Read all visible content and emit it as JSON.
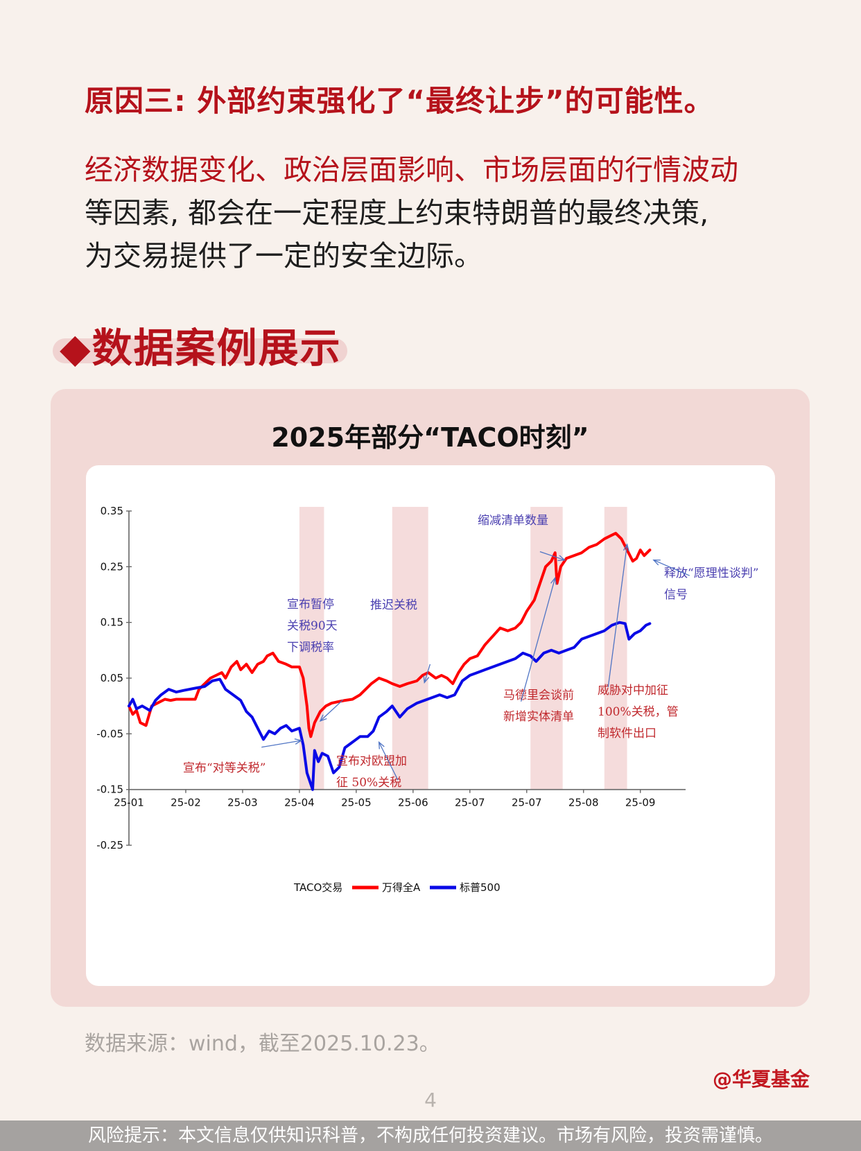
{
  "header": {
    "heading": "原因三: 外部约束强化了“最终让步”的可能性。",
    "para_red": "经济数据变化、政治层面影响、市场层面的行情波动",
    "para_line2": "等因素, 都会在一定程度上约束特朗普的最终决策,",
    "para_line3": "为交易提供了一定的安全边际。"
  },
  "section": {
    "title": "◆数据案例展示"
  },
  "colors": {
    "accent": "#b5121b",
    "wind": "#ff0000",
    "sp500": "#0a0ae6",
    "band": "#f5dcdc"
  },
  "chart_data": {
    "type": "line",
    "title": "2025年部分“TACO时刻”",
    "ylim": [
      -0.25,
      0.35
    ],
    "y_ticks": [
      "0.35",
      "0.25",
      "0.15",
      "0.05",
      "-0.05",
      "-0.15",
      "-0.25"
    ],
    "y_tick_values": [
      0.35,
      0.25,
      0.15,
      0.05,
      -0.05,
      -0.15,
      -0.25
    ],
    "x_range": [
      "2025-01-01",
      "2025-10-23"
    ],
    "x_ticks": [
      "25-01",
      "25-02",
      "25-03",
      "25-04",
      "25-05",
      "25-06",
      "25-07",
      "25-07",
      "25-08",
      "25-09"
    ],
    "x_tick_dates": [
      "2025-01-01",
      "2025-01-31",
      "2025-03-02",
      "2025-04-01",
      "2025-05-01",
      "2025-05-31",
      "2025-06-30",
      "2025-07-30",
      "2025-08-29",
      "2025-09-28"
    ],
    "legend": {
      "title": "TACO交易",
      "placement": "bottom-center"
    },
    "bands": [
      [
        "2025-04-01",
        "2025-04-14"
      ],
      [
        "2025-05-20",
        "2025-06-08"
      ],
      [
        "2025-08-01",
        "2025-08-18"
      ],
      [
        "2025-09-09",
        "2025-09-21"
      ]
    ],
    "series": [
      {
        "name": "万得全A",
        "color": "#ff0000",
        "points": [
          [
            "2025-01-01",
            0.0
          ],
          [
            "2025-01-03",
            -0.015
          ],
          [
            "2025-01-05",
            -0.008
          ],
          [
            "2025-01-07",
            -0.03
          ],
          [
            "2025-01-10",
            -0.035
          ],
          [
            "2025-01-13",
            0.0
          ],
          [
            "2025-01-16",
            0.005
          ],
          [
            "2025-01-20",
            0.012
          ],
          [
            "2025-01-23",
            0.01
          ],
          [
            "2025-01-26",
            0.012
          ],
          [
            "2025-02-05",
            0.012
          ],
          [
            "2025-02-07",
            0.03
          ],
          [
            "2025-02-10",
            0.04
          ],
          [
            "2025-02-13",
            0.05
          ],
          [
            "2025-02-16",
            0.055
          ],
          [
            "2025-02-19",
            0.06
          ],
          [
            "2025-02-21",
            0.05
          ],
          [
            "2025-02-24",
            0.07
          ],
          [
            "2025-02-27",
            0.08
          ],
          [
            "2025-03-01",
            0.065
          ],
          [
            "2025-03-04",
            0.075
          ],
          [
            "2025-03-07",
            0.06
          ],
          [
            "2025-03-10",
            0.075
          ],
          [
            "2025-03-13",
            0.08
          ],
          [
            "2025-03-15",
            0.09
          ],
          [
            "2025-03-18",
            0.095
          ],
          [
            "2025-03-21",
            0.08
          ],
          [
            "2025-03-25",
            0.075
          ],
          [
            "2025-03-28",
            0.07
          ],
          [
            "2025-04-01",
            0.07
          ],
          [
            "2025-04-03",
            0.05
          ],
          [
            "2025-04-05",
            0.0
          ],
          [
            "2025-04-06",
            -0.04
          ],
          [
            "2025-04-07",
            -0.055
          ],
          [
            "2025-04-09",
            -0.03
          ],
          [
            "2025-04-12",
            -0.01
          ],
          [
            "2025-04-15",
            0.0
          ],
          [
            "2025-04-18",
            0.005
          ],
          [
            "2025-04-22",
            0.008
          ],
          [
            "2025-04-25",
            0.01
          ],
          [
            "2025-04-29",
            0.012
          ],
          [
            "2025-05-03",
            0.02
          ],
          [
            "2025-05-06",
            0.03
          ],
          [
            "2025-05-09",
            0.04
          ],
          [
            "2025-05-13",
            0.05
          ],
          [
            "2025-05-17",
            0.045
          ],
          [
            "2025-05-20",
            0.04
          ],
          [
            "2025-05-24",
            0.035
          ],
          [
            "2025-05-28",
            0.04
          ],
          [
            "2025-06-02",
            0.045
          ],
          [
            "2025-06-05",
            0.055
          ],
          [
            "2025-06-08",
            0.06
          ],
          [
            "2025-06-12",
            0.05
          ],
          [
            "2025-06-15",
            0.055
          ],
          [
            "2025-06-18",
            0.05
          ],
          [
            "2025-06-21",
            0.04
          ],
          [
            "2025-06-24",
            0.06
          ],
          [
            "2025-06-27",
            0.075
          ],
          [
            "2025-06-30",
            0.085
          ],
          [
            "2025-07-04",
            0.09
          ],
          [
            "2025-07-08",
            0.11
          ],
          [
            "2025-07-12",
            0.125
          ],
          [
            "2025-07-16",
            0.14
          ],
          [
            "2025-07-20",
            0.135
          ],
          [
            "2025-07-24",
            0.14
          ],
          [
            "2025-07-27",
            0.15
          ],
          [
            "2025-07-30",
            0.17
          ],
          [
            "2025-08-03",
            0.19
          ],
          [
            "2025-08-06",
            0.22
          ],
          [
            "2025-08-09",
            0.25
          ],
          [
            "2025-08-12",
            0.26
          ],
          [
            "2025-08-14",
            0.275
          ],
          [
            "2025-08-15",
            0.22
          ],
          [
            "2025-08-17",
            0.25
          ],
          [
            "2025-08-20",
            0.265
          ],
          [
            "2025-08-24",
            0.27
          ],
          [
            "2025-08-28",
            0.275
          ],
          [
            "2025-09-01",
            0.285
          ],
          [
            "2025-09-05",
            0.29
          ],
          [
            "2025-09-09",
            0.3
          ],
          [
            "2025-09-12",
            0.305
          ],
          [
            "2025-09-15",
            0.31
          ],
          [
            "2025-09-18",
            0.3
          ],
          [
            "2025-09-21",
            0.28
          ],
          [
            "2025-09-24",
            0.26
          ],
          [
            "2025-09-26",
            0.265
          ],
          [
            "2025-09-28",
            0.28
          ],
          [
            "2025-09-30",
            0.27
          ],
          [
            "2025-10-03",
            0.28
          ]
        ]
      },
      {
        "name": "标普500",
        "color": "#0a0ae6",
        "points": [
          [
            "2025-01-01",
            0.0
          ],
          [
            "2025-01-03",
            0.012
          ],
          [
            "2025-01-05",
            -0.005
          ],
          [
            "2025-01-08",
            0.0
          ],
          [
            "2025-01-12",
            -0.008
          ],
          [
            "2025-01-15",
            0.01
          ],
          [
            "2025-01-18",
            0.02
          ],
          [
            "2025-01-22",
            0.03
          ],
          [
            "2025-01-26",
            0.025
          ],
          [
            "2025-01-30",
            0.028
          ],
          [
            "2025-02-05",
            0.032
          ],
          [
            "2025-02-10",
            0.035
          ],
          [
            "2025-02-14",
            0.045
          ],
          [
            "2025-02-18",
            0.048
          ],
          [
            "2025-02-21",
            0.03
          ],
          [
            "2025-02-25",
            0.02
          ],
          [
            "2025-03-01",
            0.01
          ],
          [
            "2025-03-04",
            -0.01
          ],
          [
            "2025-03-07",
            -0.02
          ],
          [
            "2025-03-10",
            -0.04
          ],
          [
            "2025-03-13",
            -0.06
          ],
          [
            "2025-03-16",
            -0.045
          ],
          [
            "2025-03-19",
            -0.05
          ],
          [
            "2025-03-22",
            -0.04
          ],
          [
            "2025-03-25",
            -0.035
          ],
          [
            "2025-03-28",
            -0.045
          ],
          [
            "2025-04-01",
            -0.04
          ],
          [
            "2025-04-03",
            -0.07
          ],
          [
            "2025-04-05",
            -0.12
          ],
          [
            "2025-04-08",
            -0.15
          ],
          [
            "2025-04-09",
            -0.08
          ],
          [
            "2025-04-11",
            -0.1
          ],
          [
            "2025-04-13",
            -0.085
          ],
          [
            "2025-04-16",
            -0.09
          ],
          [
            "2025-04-19",
            -0.12
          ],
          [
            "2025-04-22",
            -0.11
          ],
          [
            "2025-04-25",
            -0.075
          ],
          [
            "2025-04-29",
            -0.065
          ],
          [
            "2025-05-03",
            -0.055
          ],
          [
            "2025-05-07",
            -0.055
          ],
          [
            "2025-05-10",
            -0.045
          ],
          [
            "2025-05-13",
            -0.02
          ],
          [
            "2025-05-17",
            -0.01
          ],
          [
            "2025-05-20",
            0.0
          ],
          [
            "2025-05-24",
            -0.02
          ],
          [
            "2025-05-28",
            -0.005
          ],
          [
            "2025-06-02",
            0.005
          ],
          [
            "2025-06-06",
            0.01
          ],
          [
            "2025-06-10",
            0.015
          ],
          [
            "2025-06-14",
            0.02
          ],
          [
            "2025-06-18",
            0.015
          ],
          [
            "2025-06-22",
            0.02
          ],
          [
            "2025-06-26",
            0.045
          ],
          [
            "2025-06-30",
            0.055
          ],
          [
            "2025-07-04",
            0.06
          ],
          [
            "2025-07-08",
            0.065
          ],
          [
            "2025-07-12",
            0.07
          ],
          [
            "2025-07-16",
            0.075
          ],
          [
            "2025-07-20",
            0.08
          ],
          [
            "2025-07-24",
            0.085
          ],
          [
            "2025-07-28",
            0.095
          ],
          [
            "2025-08-01",
            0.09
          ],
          [
            "2025-08-04",
            0.08
          ],
          [
            "2025-08-08",
            0.095
          ],
          [
            "2025-08-12",
            0.1
          ],
          [
            "2025-08-16",
            0.095
          ],
          [
            "2025-08-20",
            0.1
          ],
          [
            "2025-08-24",
            0.105
          ],
          [
            "2025-08-28",
            0.12
          ],
          [
            "2025-09-01",
            0.125
          ],
          [
            "2025-09-05",
            0.13
          ],
          [
            "2025-09-09",
            0.135
          ],
          [
            "2025-09-13",
            0.145
          ],
          [
            "2025-09-17",
            0.15
          ],
          [
            "2025-09-20",
            0.148
          ],
          [
            "2025-09-22",
            0.12
          ],
          [
            "2025-09-25",
            0.13
          ],
          [
            "2025-09-28",
            0.135
          ],
          [
            "2025-10-01",
            0.145
          ],
          [
            "2025-10-03",
            0.148
          ]
        ]
      }
    ],
    "annotations": [
      {
        "lines": [
          "宣布“对等关税”"
        ],
        "color": "#c0282d"
      },
      {
        "lines": [
          "宣布暂停",
          "关税90天",
          "下调税率"
        ],
        "color": "#4a3fb0"
      },
      {
        "lines": [
          "宣布对欧盟加",
          "征 50%关税"
        ],
        "color": "#c0282d"
      },
      {
        "lines": [
          "推迟关税"
        ],
        "color": "#4a3fb0"
      },
      {
        "lines": [
          "缩减清单数量"
        ],
        "color": "#4a3fb0"
      },
      {
        "lines": [
          "马德里会谈前",
          "新增实体清单"
        ],
        "color": "#c0282d"
      },
      {
        "lines": [
          "威胁对中加征",
          "100%关税，管",
          "制软件出口"
        ],
        "color": "#c0282d"
      },
      {
        "lines": [
          "释放“愿理性谈判”",
          "信号"
        ],
        "color": "#4a3fb0"
      }
    ]
  },
  "source_note": "数据来源：wind，截至2025.10.23。",
  "brand": "@华夏基金",
  "page_number": "4",
  "footer": "风险提示：本文信息仅供知识科普，不构成任何投资建议。市场有风险，投资需谨慎。"
}
